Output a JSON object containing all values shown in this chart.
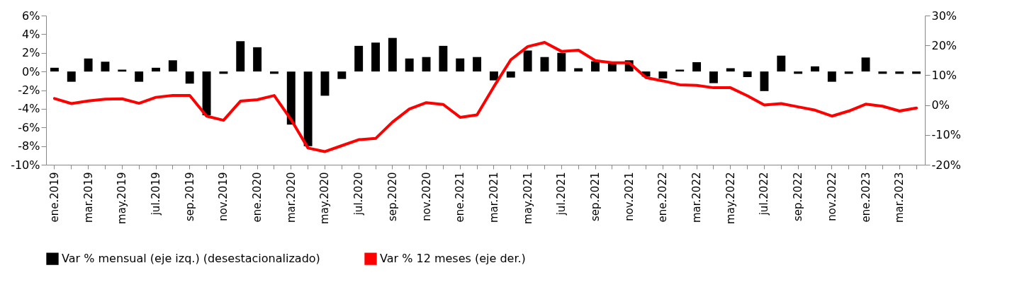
{
  "chart_data": {
    "type": "bar",
    "categories": [
      "ene.2019",
      null,
      "mar.2019",
      null,
      "may.2019",
      null,
      "jul.2019",
      null,
      "sep.2019",
      null,
      "nov.2019",
      null,
      "ene.2020",
      null,
      "mar.2020",
      null,
      "may.2020",
      null,
      "jul.2020",
      null,
      "sep.2020",
      null,
      "nov.2020",
      null,
      "ene.2021",
      null,
      "mar.2021",
      null,
      "may.2021",
      null,
      "jul.2021",
      null,
      "sep.2021",
      null,
      "nov.2021",
      null,
      "ene.2022",
      null,
      "mar.2022",
      null,
      "may.2022",
      null,
      "jul.2022",
      null,
      "sep.2022",
      null,
      "nov.2022",
      null,
      "ene.2023",
      null,
      "mar.2023",
      null
    ],
    "series": [
      {
        "name": "Var % mensual (eje izq.) (desestacionalizado)",
        "color": "#000000",
        "values": [
          0.4,
          -1.1,
          1.4,
          1.05,
          0.2,
          -1.1,
          0.4,
          1.2,
          -1.3,
          -4.7,
          -0.25,
          3.25,
          2.6,
          -0.25,
          -5.7,
          -8.0,
          -2.6,
          -0.8,
          2.75,
          3.1,
          3.6,
          1.4,
          1.55,
          2.75,
          1.4,
          1.55,
          -0.95,
          -0.65,
          2.25,
          1.55,
          2.0,
          0.35,
          1.1,
          0.95,
          1.2,
          -0.55,
          -0.75,
          0.2,
          1.0,
          -1.25,
          0.35,
          -0.6,
          -2.1,
          1.7,
          -0.25,
          0.55,
          -1.1,
          -0.25,
          1.5,
          -0.25,
          -0.25,
          -0.25
        ]
      },
      {
        "name": "Var % 12 meses (eje der.)",
        "type": "line",
        "axis": "y2",
        "color": "#ff0000",
        "values": [
          2.2,
          0.5,
          1.4,
          2.0,
          2.1,
          0.6,
          2.6,
          3.2,
          3.2,
          -3.7,
          -5.1,
          1.3,
          1.8,
          3.2,
          -4.9,
          -14.4,
          -15.6,
          -13.6,
          -11.6,
          -11.2,
          -5.7,
          -1.3,
          0.8,
          0.2,
          -4.1,
          -3.3,
          6.2,
          15.2,
          19.6,
          21.0,
          18.0,
          18.4,
          14.9,
          14.2,
          14.2,
          9.2,
          8.1,
          6.8,
          6.6,
          5.8,
          5.8,
          3.1,
          0.0,
          0.5,
          -0.6,
          -1.7,
          -3.7,
          -2.0,
          0.3,
          -0.4,
          -2.0,
          -1.0
        ]
      }
    ],
    "ylim": [
      -10,
      6
    ],
    "yticks": [
      {
        "value": -10,
        "label": "-10%"
      },
      {
        "value": -8,
        "label": "-8%"
      },
      {
        "value": -6,
        "label": "-6%"
      },
      {
        "value": -4,
        "label": "-4%"
      },
      {
        "value": -2,
        "label": "-2%"
      },
      {
        "value": 0,
        "label": "0%"
      },
      {
        "value": 2,
        "label": "2%"
      },
      {
        "value": 4,
        "label": "4%"
      },
      {
        "value": 6,
        "label": "6%"
      }
    ],
    "y2lim": [
      -20,
      30
    ],
    "y2ticks": [
      {
        "value": -20,
        "label": "-20%"
      },
      {
        "value": -10,
        "label": "-10%"
      },
      {
        "value": 0,
        "label": "0%"
      },
      {
        "value": 10,
        "label": "10%"
      },
      {
        "value": 20,
        "label": "20%"
      },
      {
        "value": 30,
        "label": "30%"
      }
    ],
    "grid": false,
    "legend": "bottom",
    "line_style": "solid",
    "marker": "none"
  }
}
